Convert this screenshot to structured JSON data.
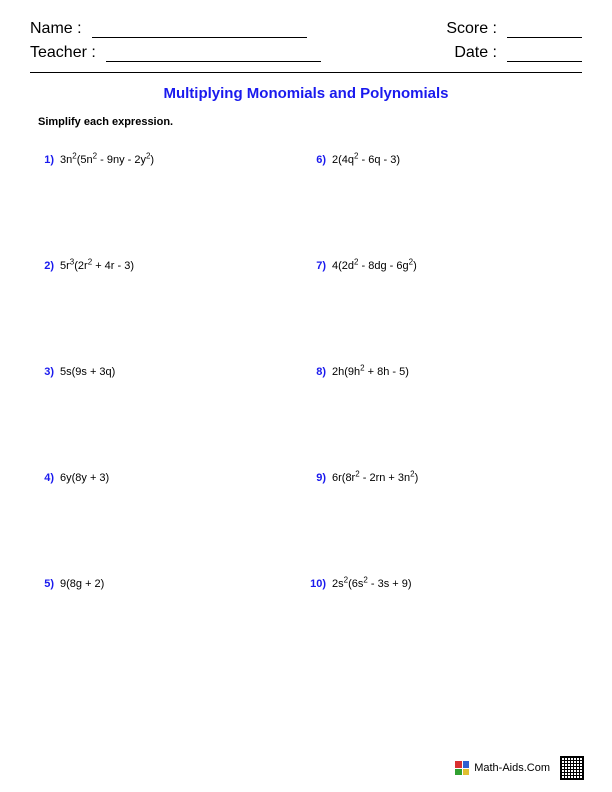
{
  "header": {
    "name_label": "Name :",
    "teacher_label": "Teacher :",
    "score_label": "Score :",
    "date_label": "Date :"
  },
  "title": {
    "text": "Multiplying Monomials and Polynomials",
    "color": "#1a1aee"
  },
  "instruction": "Simplify each expression.",
  "problem_number_color": "#1a1aee",
  "problems": [
    {
      "num": "1)",
      "html": "3n<sup>2</sup>(5n<sup>2</sup> - 9ny - 2y<sup>2</sup>)"
    },
    {
      "num": "2)",
      "html": "5r<sup>3</sup>(2r<sup>2</sup> + 4r - 3)"
    },
    {
      "num": "3)",
      "html": "5s(9s + 3q)"
    },
    {
      "num": "4)",
      "html": "6y(8y + 3)"
    },
    {
      "num": "5)",
      "html": "9(8g + 2)"
    },
    {
      "num": "6)",
      "html": "2(4q<sup>2</sup> - 6q - 3)"
    },
    {
      "num": "7)",
      "html": "4(2d<sup>2</sup> - 8dg - 6g<sup>2</sup>)"
    },
    {
      "num": "8)",
      "html": "2h(9h<sup>2</sup> + 8h - 5)"
    },
    {
      "num": "9)",
      "html": "6r(8r<sup>2</sup> - 2rn + 3n<sup>2</sup>)"
    },
    {
      "num": "10)",
      "html": "2s<sup>2</sup>(6s<sup>2</sup> - 3s + 9)"
    }
  ],
  "footer": {
    "text": "Math-Aids.Com",
    "icon_colors": [
      "#d93030",
      "#3060d0",
      "#30a030",
      "#e0c030"
    ]
  }
}
